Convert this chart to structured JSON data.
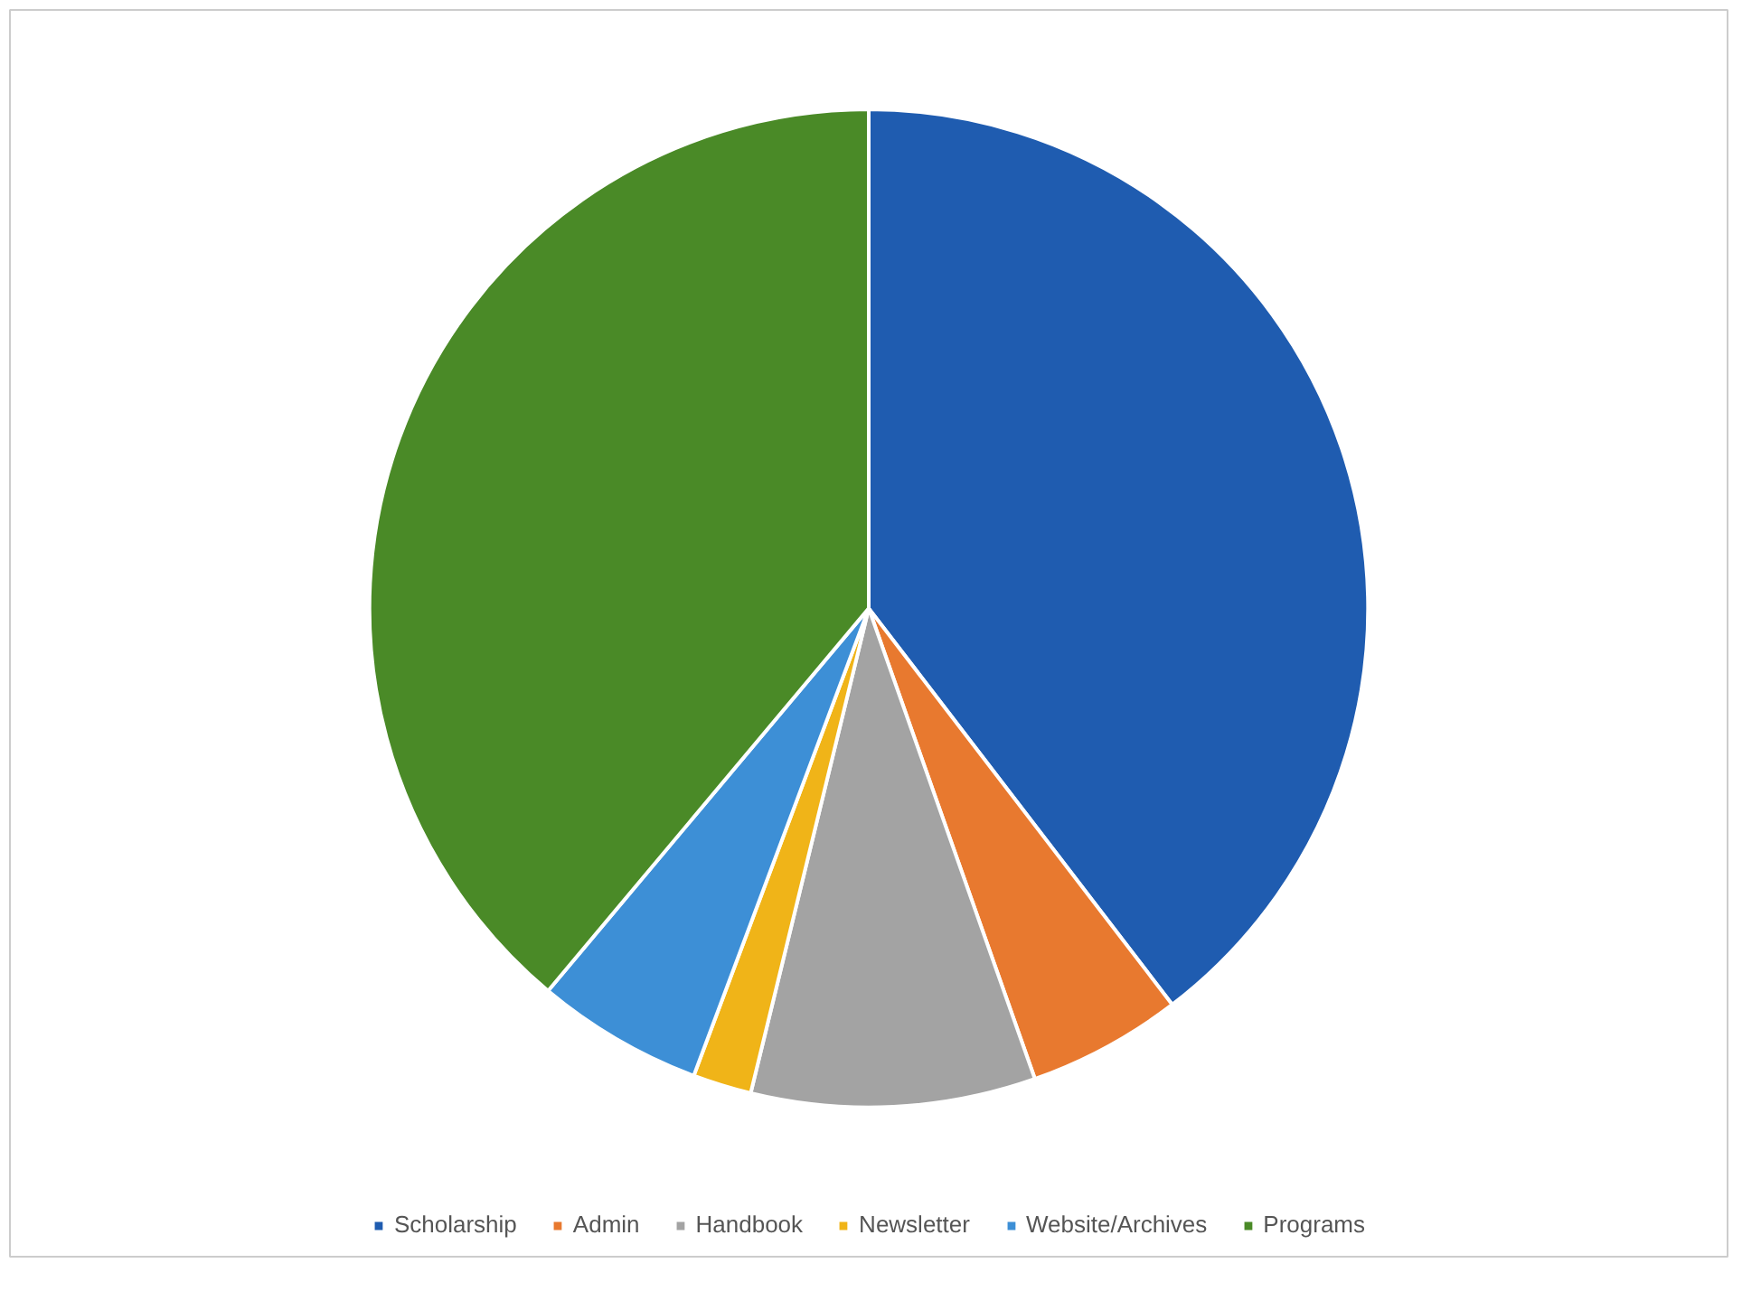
{
  "chart_data": {
    "type": "pie",
    "categories": [
      "Scholarship",
      "Admin",
      "Handbook",
      "Newsletter",
      "Website/Archives",
      "Programs"
    ],
    "values": [
      39.6,
      5.0,
      9.2,
      1.9,
      5.4,
      38.9
    ],
    "colors": [
      "#1f5cb0",
      "#e8792f",
      "#a3a3a3",
      "#f0b418",
      "#3d8fd6",
      "#4a8a27"
    ],
    "legend": "bottom"
  }
}
